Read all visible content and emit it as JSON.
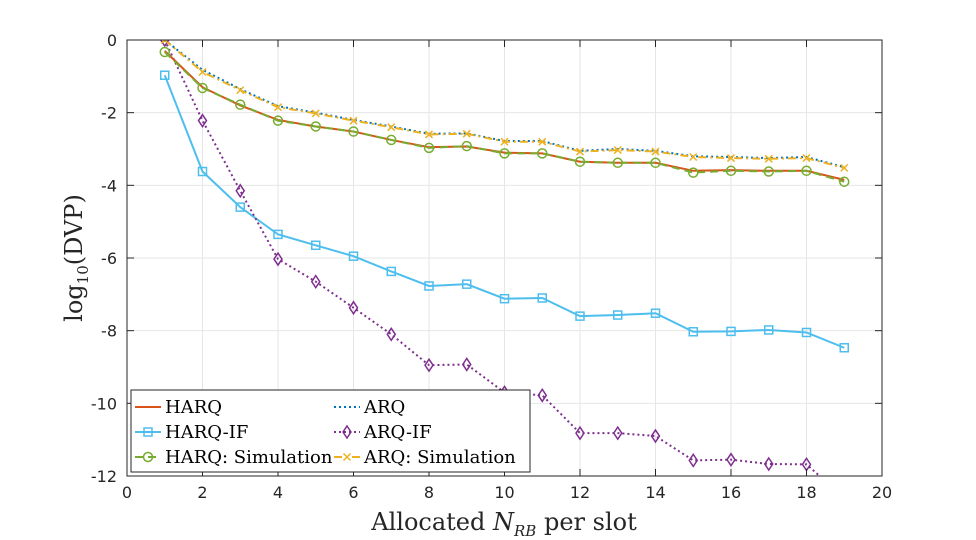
{
  "chart_data": {
    "type": "line",
    "xlabel": "Allocated N_RB per slot",
    "xlabel_parts": {
      "prefix": "Allocated ",
      "var": "N",
      "sub": "RB",
      "suffix": " per slot"
    },
    "ylabel": "log10(DVP)",
    "ylabel_parts": {
      "prefix": "log",
      "sub": "10",
      "suffix": "(DVP)"
    },
    "xlim": [
      0,
      20
    ],
    "ylim": [
      -12,
      0
    ],
    "xticks": [
      "0",
      "2",
      "4",
      "6",
      "8",
      "10",
      "12",
      "14",
      "16",
      "18",
      "20"
    ],
    "yticks": [
      "0",
      "-2",
      "-4",
      "-6",
      "-8",
      "-10",
      "-12"
    ],
    "grid": true,
    "legend_placement": "bottom-left",
    "series": [
      {
        "name": "HARQ",
        "color": "#D95319",
        "style": "solid",
        "marker": "none",
        "x": [
          1,
          2,
          3,
          4,
          5,
          6,
          7,
          8,
          9,
          10,
          11,
          12,
          13,
          14,
          15,
          16,
          17,
          18,
          19
        ],
        "values": [
          -0.3,
          -1.3,
          -1.8,
          -2.2,
          -2.38,
          -2.52,
          -2.75,
          -2.95,
          -2.93,
          -3.1,
          -3.12,
          -3.35,
          -3.38,
          -3.38,
          -3.6,
          -3.58,
          -3.6,
          -3.6,
          -3.85
        ]
      },
      {
        "name": "ARQ",
        "color": "#0072BD",
        "style": "dotted",
        "marker": "none",
        "x": [
          1,
          2,
          3,
          4,
          5,
          6,
          7,
          8,
          9,
          10,
          11,
          12,
          13,
          14,
          15,
          16,
          17,
          18,
          19
        ],
        "values": [
          0.0,
          -0.82,
          -1.35,
          -1.82,
          -2.0,
          -2.2,
          -2.38,
          -2.58,
          -2.57,
          -2.78,
          -2.78,
          -3.05,
          -3.0,
          -3.05,
          -3.2,
          -3.22,
          -3.25,
          -3.22,
          -3.5
        ]
      },
      {
        "name": "HARQ-IF",
        "color": "#4DBEEE",
        "style": "solid",
        "marker": "square",
        "x": [
          1,
          2,
          3,
          4,
          5,
          6,
          7,
          8,
          9,
          10,
          11,
          12,
          13,
          14,
          15,
          16,
          17,
          18,
          19
        ],
        "values": [
          -0.97,
          -3.62,
          -4.6,
          -5.35,
          -5.65,
          -5.95,
          -6.37,
          -6.77,
          -6.72,
          -7.12,
          -7.1,
          -7.6,
          -7.57,
          -7.52,
          -8.03,
          -8.02,
          -7.98,
          -8.05,
          -8.47
        ]
      },
      {
        "name": "ARQ-IF",
        "color": "#7E2F8E",
        "style": "dotted",
        "marker": "diamond",
        "x": [
          1,
          2,
          3,
          4,
          5,
          6,
          7,
          8,
          9,
          10,
          11,
          12,
          13,
          14,
          15,
          16,
          17,
          18,
          19
        ],
        "values": [
          0.0,
          -2.22,
          -4.15,
          -6.03,
          -6.65,
          -7.37,
          -8.1,
          -8.95,
          -8.93,
          -9.7,
          -9.78,
          -10.82,
          -10.82,
          -10.9,
          -11.57,
          -11.55,
          -11.67,
          -11.68,
          -12.6
        ]
      },
      {
        "name": "HARQ: Simulation",
        "color": "#77AC30",
        "style": "dashed",
        "marker": "circle",
        "x": [
          1,
          2,
          3,
          4,
          5,
          6,
          7,
          8,
          9,
          10,
          11,
          12,
          13,
          14,
          15,
          16,
          17,
          18,
          19
        ],
        "values": [
          -0.33,
          -1.32,
          -1.78,
          -2.22,
          -2.38,
          -2.52,
          -2.75,
          -2.97,
          -2.92,
          -3.12,
          -3.12,
          -3.35,
          -3.38,
          -3.38,
          -3.65,
          -3.6,
          -3.62,
          -3.6,
          -3.9
        ]
      },
      {
        "name": "ARQ: Simulation",
        "color": "#EDB120",
        "style": "dashdot",
        "marker": "x",
        "x": [
          1,
          2,
          3,
          4,
          5,
          6,
          7,
          8,
          9,
          10,
          11,
          12,
          13,
          14,
          15,
          16,
          17,
          18,
          19
        ],
        "values": [
          0.0,
          -0.88,
          -1.38,
          -1.85,
          -2.02,
          -2.22,
          -2.4,
          -2.6,
          -2.58,
          -2.8,
          -2.8,
          -3.07,
          -3.03,
          -3.07,
          -3.22,
          -3.25,
          -3.27,
          -3.25,
          -3.52
        ]
      }
    ]
  }
}
